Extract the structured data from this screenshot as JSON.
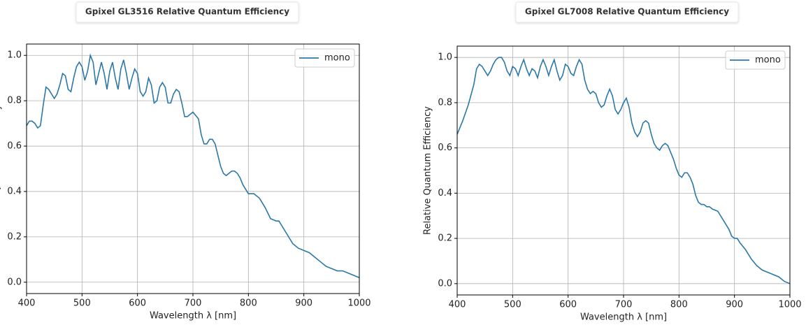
{
  "chart_data": [
    {
      "type": "line",
      "title": "Gpixel GL3516 Relative Quantum Efficiency",
      "xlabel": "Wavelength λ [nm]",
      "ylabel": "Relative Quantum Efficiency",
      "x": [
        400,
        405,
        410,
        415,
        420,
        425,
        430,
        435,
        440,
        445,
        450,
        455,
        460,
        465,
        470,
        475,
        480,
        485,
        490,
        495,
        500,
        505,
        510,
        515,
        520,
        525,
        530,
        535,
        540,
        545,
        550,
        555,
        560,
        565,
        570,
        575,
        580,
        585,
        590,
        595,
        600,
        605,
        610,
        615,
        620,
        625,
        630,
        635,
        640,
        645,
        650,
        655,
        660,
        665,
        670,
        675,
        680,
        685,
        690,
        695,
        700,
        710,
        715,
        720,
        725,
        730,
        735,
        740,
        745,
        750,
        755,
        760,
        765,
        770,
        775,
        780,
        785,
        790,
        795,
        800,
        810,
        820,
        830,
        840,
        850,
        855,
        860,
        870,
        880,
        890,
        900,
        910,
        920,
        930,
        940,
        950,
        960,
        970,
        980,
        990,
        1000
      ],
      "series": [
        {
          "name": "mono",
          "color": "#2b78a8",
          "values": [
            0.69,
            0.71,
            0.71,
            0.7,
            0.68,
            0.69,
            0.78,
            0.86,
            0.85,
            0.83,
            0.81,
            0.83,
            0.87,
            0.92,
            0.91,
            0.85,
            0.84,
            0.9,
            0.95,
            0.97,
            0.95,
            0.89,
            0.93,
            1.0,
            0.97,
            0.87,
            0.92,
            0.97,
            0.92,
            0.85,
            0.93,
            0.97,
            0.9,
            0.85,
            0.94,
            0.98,
            0.92,
            0.85,
            0.9,
            0.94,
            0.92,
            0.84,
            0.82,
            0.84,
            0.9,
            0.87,
            0.79,
            0.8,
            0.86,
            0.88,
            0.86,
            0.79,
            0.79,
            0.83,
            0.85,
            0.84,
            0.79,
            0.73,
            0.73,
            0.74,
            0.75,
            0.72,
            0.65,
            0.61,
            0.61,
            0.63,
            0.63,
            0.61,
            0.56,
            0.51,
            0.48,
            0.47,
            0.48,
            0.49,
            0.49,
            0.48,
            0.46,
            0.43,
            0.41,
            0.39,
            0.39,
            0.37,
            0.33,
            0.28,
            0.27,
            0.27,
            0.25,
            0.21,
            0.17,
            0.15,
            0.14,
            0.13,
            0.11,
            0.09,
            0.07,
            0.06,
            0.05,
            0.05,
            0.04,
            0.03,
            0.02
          ]
        }
      ],
      "xlim": [
        400,
        1000
      ],
      "xticks": [
        400,
        500,
        600,
        700,
        800,
        900,
        1000
      ],
      "ylim": [
        -0.05,
        1.05
      ],
      "yticks": [
        {
          "value": 0,
          "label": "0.0"
        },
        0.2,
        0.4,
        0.6,
        0.8,
        {
          "value": 1,
          "label": "1.0"
        }
      ],
      "grid": true,
      "legend": "upper right"
    },
    {
      "type": "line",
      "title": "Gpixel GL7008 Relative Quantum Efficiency",
      "xlabel": "Wavelength λ [nm]",
      "ylabel": "Relative Quantum Efficiency",
      "x": [
        400,
        410,
        420,
        430,
        435,
        440,
        445,
        450,
        455,
        460,
        465,
        470,
        475,
        480,
        485,
        490,
        495,
        500,
        505,
        510,
        515,
        520,
        525,
        530,
        535,
        540,
        545,
        550,
        555,
        560,
        565,
        570,
        575,
        580,
        585,
        590,
        595,
        600,
        605,
        610,
        615,
        620,
        625,
        630,
        635,
        640,
        645,
        650,
        655,
        660,
        665,
        670,
        675,
        680,
        685,
        690,
        695,
        700,
        705,
        710,
        715,
        720,
        725,
        730,
        735,
        740,
        745,
        750,
        755,
        760,
        765,
        770,
        775,
        780,
        785,
        790,
        795,
        800,
        805,
        810,
        815,
        820,
        825,
        830,
        835,
        840,
        845,
        850,
        855,
        860,
        870,
        880,
        890,
        895,
        900,
        905,
        910,
        920,
        930,
        940,
        950,
        960,
        970,
        980,
        990,
        1000
      ],
      "series": [
        {
          "name": "mono",
          "color": "#2b78a8",
          "values": [
            0.66,
            0.72,
            0.79,
            0.88,
            0.95,
            0.97,
            0.96,
            0.94,
            0.92,
            0.94,
            0.97,
            0.99,
            1.0,
            1.0,
            0.98,
            0.94,
            0.92,
            0.96,
            0.95,
            0.92,
            0.96,
            0.99,
            0.95,
            0.92,
            0.95,
            0.94,
            0.91,
            0.96,
            0.99,
            0.96,
            0.92,
            0.96,
            0.99,
            0.94,
            0.9,
            0.92,
            0.97,
            0.96,
            0.93,
            0.92,
            0.96,
            0.99,
            0.97,
            0.9,
            0.86,
            0.84,
            0.85,
            0.84,
            0.8,
            0.78,
            0.79,
            0.83,
            0.86,
            0.83,
            0.77,
            0.75,
            0.77,
            0.8,
            0.82,
            0.78,
            0.71,
            0.67,
            0.65,
            0.67,
            0.71,
            0.72,
            0.71,
            0.66,
            0.62,
            0.6,
            0.59,
            0.61,
            0.62,
            0.61,
            0.58,
            0.55,
            0.51,
            0.48,
            0.47,
            0.49,
            0.49,
            0.47,
            0.44,
            0.39,
            0.36,
            0.35,
            0.35,
            0.34,
            0.34,
            0.33,
            0.32,
            0.28,
            0.24,
            0.21,
            0.2,
            0.2,
            0.18,
            0.15,
            0.11,
            0.08,
            0.06,
            0.05,
            0.04,
            0.03,
            0.01,
            0.0
          ]
        }
      ],
      "xlim": [
        400,
        1000
      ],
      "xticks": [
        400,
        500,
        600,
        700,
        800,
        900,
        1000
      ],
      "ylim": [
        -0.05,
        1.05
      ],
      "yticks": [
        {
          "value": 0,
          "label": "0.0"
        },
        0.2,
        0.4,
        0.6,
        0.8,
        {
          "value": 1,
          "label": "1.0"
        }
      ],
      "grid": true,
      "legend": "upper right"
    }
  ]
}
